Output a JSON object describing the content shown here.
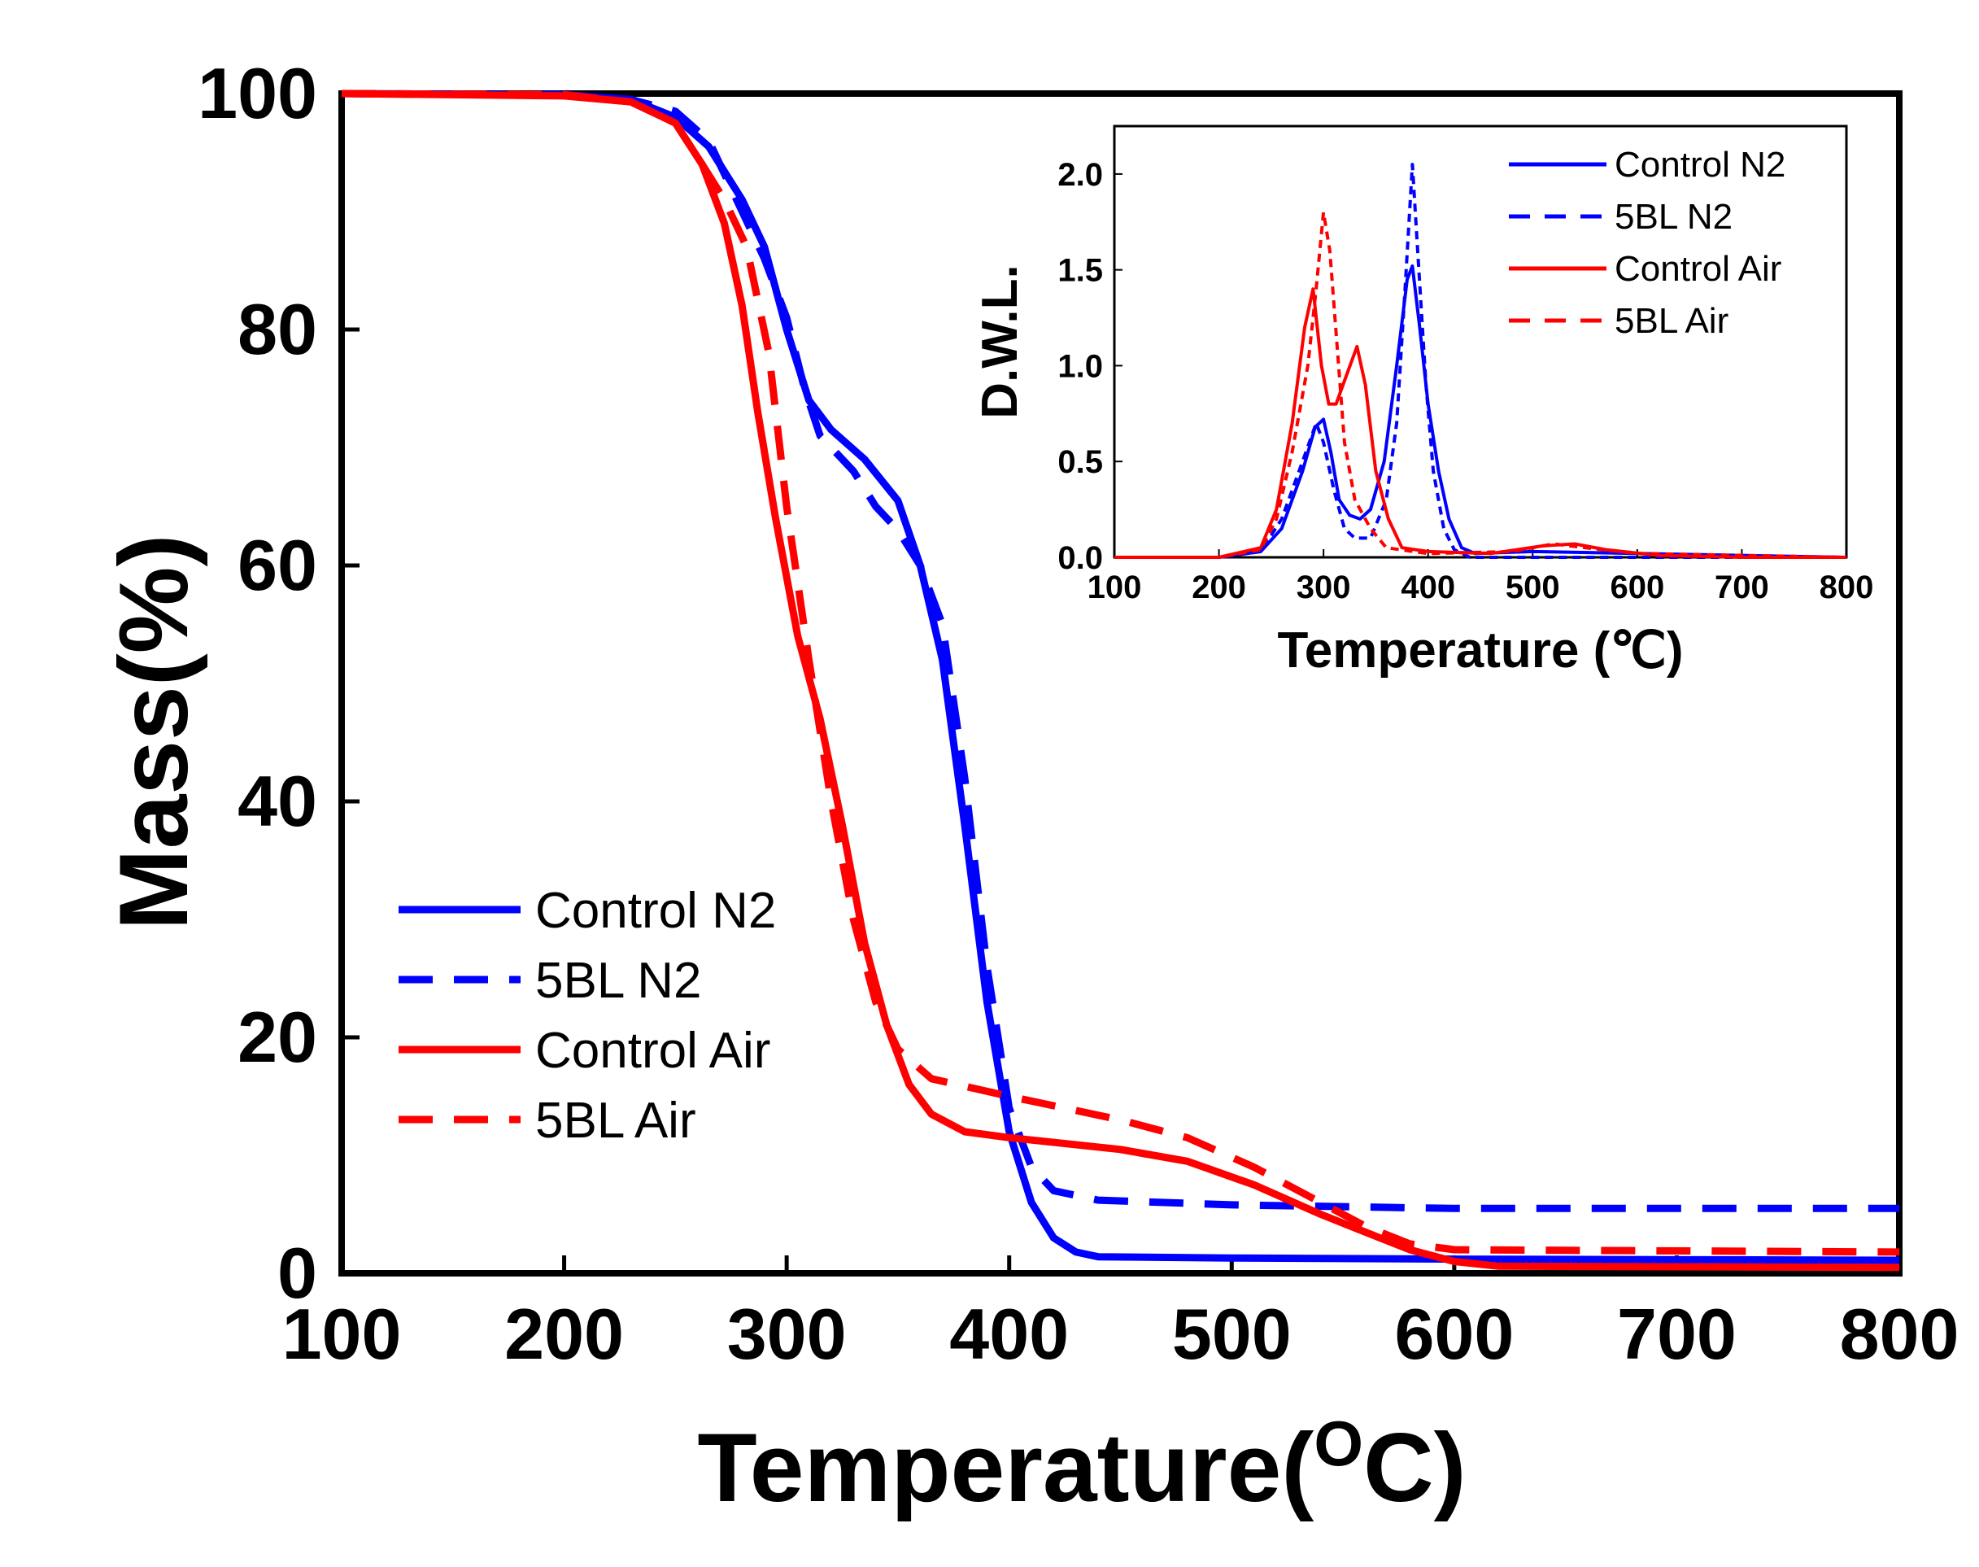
{
  "chart_data": [
    {
      "type": "line",
      "title": "",
      "xlabel": "Temperature",
      "xlabel_unit": "(OC)",
      "xlabel_superscript": "O",
      "xlabel_open": "(",
      "xlabel_close": "C)",
      "ylabel": "Mass(%)",
      "xlim": [
        100,
        800
      ],
      "ylim": [
        0,
        100
      ],
      "xticks": [
        "100",
        "200",
        "300",
        "400",
        "500",
        "600",
        "700",
        "800"
      ],
      "yticks": [
        "0",
        "20",
        "40",
        "60",
        "80",
        "100"
      ],
      "legend_position": "bottom-left",
      "series": [
        {
          "name": "Control N2",
          "color": "#0000ff",
          "style": "solid",
          "points": [
            [
              100,
              100
            ],
            [
              200,
              99.9
            ],
            [
              230,
              99.5
            ],
            [
              250,
              98
            ],
            [
              265,
              95.5
            ],
            [
              280,
              91
            ],
            [
              290,
              87
            ],
            [
              300,
              80
            ],
            [
              305,
              77
            ],
            [
              310,
              74
            ],
            [
              320,
              71.5
            ],
            [
              335,
              69
            ],
            [
              350,
              65.5
            ],
            [
              360,
              60
            ],
            [
              370,
              52
            ],
            [
              380,
              38
            ],
            [
              390,
              23
            ],
            [
              400,
              12
            ],
            [
              410,
              6
            ],
            [
              420,
              3
            ],
            [
              430,
              1.8
            ],
            [
              440,
              1.4
            ],
            [
              500,
              1.3
            ],
            [
              600,
              1.2
            ],
            [
              800,
              1.1
            ]
          ]
        },
        {
          "name": "5BL N2",
          "color": "#0000ff",
          "style": "dashed",
          "points": [
            [
              100,
              100
            ],
            [
              200,
              99.9
            ],
            [
              230,
              99.5
            ],
            [
              250,
              98.5
            ],
            [
              265,
              96
            ],
            [
              280,
              90
            ],
            [
              290,
              86
            ],
            [
              300,
              81
            ],
            [
              308,
              75
            ],
            [
              315,
              71
            ],
            [
              330,
              68
            ],
            [
              340,
              65
            ],
            [
              350,
              63
            ],
            [
              360,
              60
            ],
            [
              370,
              55
            ],
            [
              380,
              42
            ],
            [
              390,
              26
            ],
            [
              400,
              14
            ],
            [
              410,
              9
            ],
            [
              420,
              7
            ],
            [
              440,
              6.2
            ],
            [
              500,
              5.8
            ],
            [
              600,
              5.5
            ],
            [
              800,
              5.5
            ]
          ]
        },
        {
          "name": "Control Air",
          "color": "#ff0000",
          "style": "solid",
          "points": [
            [
              100,
              100
            ],
            [
              200,
              99.8
            ],
            [
              230,
              99.3
            ],
            [
              250,
              97.5
            ],
            [
              262,
              94
            ],
            [
              272,
              89
            ],
            [
              280,
              82
            ],
            [
              287,
              73
            ],
            [
              295,
              64
            ],
            [
              305,
              54
            ],
            [
              315,
              47
            ],
            [
              325,
              38
            ],
            [
              335,
              28
            ],
            [
              345,
              21
            ],
            [
              355,
              16
            ],
            [
              365,
              13.5
            ],
            [
              380,
              12
            ],
            [
              400,
              11.5
            ],
            [
              450,
              10.5
            ],
            [
              480,
              9.5
            ],
            [
              510,
              7.5
            ],
            [
              540,
              5
            ],
            [
              560,
              3.5
            ],
            [
              580,
              2
            ],
            [
              600,
              1
            ],
            [
              620,
              0.6
            ],
            [
              800,
              0.5
            ]
          ]
        },
        {
          "name": "5BL Air",
          "color": "#ff0000",
          "style": "dashed",
          "points": [
            [
              100,
              100
            ],
            [
              200,
              99.9
            ],
            [
              230,
              99.3
            ],
            [
              250,
              97.5
            ],
            [
              262,
              94
            ],
            [
              272,
              91
            ],
            [
              282,
              87
            ],
            [
              292,
              78
            ],
            [
              300,
              65
            ],
            [
              310,
              52
            ],
            [
              320,
              40
            ],
            [
              330,
              30
            ],
            [
              340,
              23
            ],
            [
              350,
              19
            ],
            [
              365,
              16.5
            ],
            [
              400,
              15
            ],
            [
              450,
              13
            ],
            [
              480,
              11.5
            ],
            [
              510,
              9
            ],
            [
              540,
              6
            ],
            [
              560,
              4
            ],
            [
              580,
              2.5
            ],
            [
              600,
              2
            ],
            [
              800,
              1.8
            ]
          ]
        }
      ]
    },
    {
      "type": "line",
      "title": "",
      "xlabel": "Temperature (℃)",
      "ylabel": "D.W.L.",
      "xlim": [
        100,
        800
      ],
      "ylim": [
        0,
        2.25
      ],
      "xticks": [
        "100",
        "200",
        "300",
        "400",
        "500",
        "600",
        "700",
        "800"
      ],
      "yticks": [
        "0.0",
        "0.5",
        "1.0",
        "1.5",
        "2.0"
      ],
      "legend_position": "top-right",
      "series": [
        {
          "name": "Control N2",
          "color": "#0000ff",
          "style": "solid",
          "points": [
            [
              100,
              0
            ],
            [
              200,
              0
            ],
            [
              240,
              0.03
            ],
            [
              260,
              0.15
            ],
            [
              280,
              0.45
            ],
            [
              292,
              0.68
            ],
            [
              300,
              0.72
            ],
            [
              307,
              0.55
            ],
            [
              315,
              0.3
            ],
            [
              325,
              0.22
            ],
            [
              335,
              0.2
            ],
            [
              345,
              0.25
            ],
            [
              358,
              0.5
            ],
            [
              370,
              1.0
            ],
            [
              380,
              1.45
            ],
            [
              385,
              1.52
            ],
            [
              392,
              1.2
            ],
            [
              400,
              0.8
            ],
            [
              410,
              0.45
            ],
            [
              420,
              0.2
            ],
            [
              432,
              0.05
            ],
            [
              445,
              0.02
            ],
            [
              500,
              0.03
            ],
            [
              800,
              0
            ]
          ]
        },
        {
          "name": "5BL N2",
          "color": "#0000ff",
          "style": "dashed",
          "points": [
            [
              100,
              0
            ],
            [
              200,
              0
            ],
            [
              240,
              0.03
            ],
            [
              260,
              0.2
            ],
            [
              280,
              0.5
            ],
            [
              293,
              0.7
            ],
            [
              300,
              0.6
            ],
            [
              310,
              0.35
            ],
            [
              320,
              0.15
            ],
            [
              330,
              0.1
            ],
            [
              345,
              0.1
            ],
            [
              360,
              0.3
            ],
            [
              370,
              0.7
            ],
            [
              378,
              1.4
            ],
            [
              385,
              2.05
            ],
            [
              390,
              1.6
            ],
            [
              398,
              0.9
            ],
            [
              405,
              0.45
            ],
            [
              415,
              0.15
            ],
            [
              425,
              0.04
            ],
            [
              440,
              0
            ],
            [
              800,
              0
            ]
          ]
        },
        {
          "name": "Control Air",
          "color": "#ff0000",
          "style": "solid",
          "points": [
            [
              100,
              0
            ],
            [
              200,
              0
            ],
            [
              240,
              0.05
            ],
            [
              255,
              0.25
            ],
            [
              270,
              0.7
            ],
            [
              282,
              1.2
            ],
            [
              290,
              1.4
            ],
            [
              298,
              1.0
            ],
            [
              305,
              0.8
            ],
            [
              312,
              0.8
            ],
            [
              322,
              0.95
            ],
            [
              332,
              1.1
            ],
            [
              340,
              0.9
            ],
            [
              350,
              0.45
            ],
            [
              362,
              0.2
            ],
            [
              375,
              0.05
            ],
            [
              400,
              0.03
            ],
            [
              460,
              0.02
            ],
            [
              510,
              0.06
            ],
            [
              540,
              0.07
            ],
            [
              570,
              0.04
            ],
            [
              620,
              0.01
            ],
            [
              700,
              0
            ],
            [
              800,
              0
            ]
          ]
        },
        {
          "name": "5BL Air",
          "color": "#ff0000",
          "style": "dashed",
          "points": [
            [
              100,
              0
            ],
            [
              200,
              0
            ],
            [
              240,
              0.04
            ],
            [
              255,
              0.2
            ],
            [
              270,
              0.55
            ],
            [
              285,
              1.0
            ],
            [
              293,
              1.4
            ],
            [
              300,
              1.8
            ],
            [
              306,
              1.6
            ],
            [
              313,
              1.1
            ],
            [
              320,
              0.6
            ],
            [
              330,
              0.3
            ],
            [
              345,
              0.15
            ],
            [
              360,
              0.05
            ],
            [
              400,
              0.02
            ],
            [
              480,
              0.03
            ],
            [
              520,
              0.07
            ],
            [
              550,
              0.05
            ],
            [
              600,
              0.02
            ],
            [
              800,
              0
            ]
          ]
        }
      ]
    }
  ]
}
